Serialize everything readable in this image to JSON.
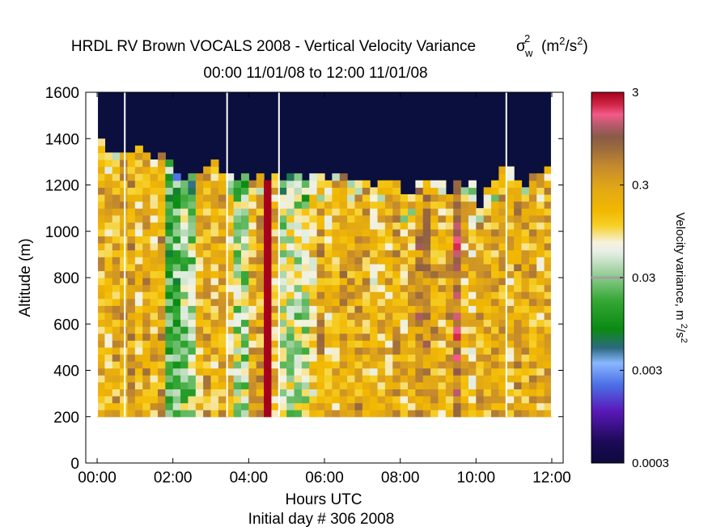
{
  "chart_data": {
    "type": "heatmap",
    "title": {
      "main": "HRDL RV Brown VOCALS 2008 - Vertical Velocity Variance",
      "sigma": "σ",
      "sigma_sub": "w",
      "sigma_sup": "2",
      "units_open": "(m",
      "units_sup1": "2",
      "units_mid": "/s",
      "units_sup2": "2",
      "units_close": ")",
      "subtitle": "00:00 11/01/08 to 12:00 11/01/08"
    },
    "xlabel": "Hours UTC",
    "xlabel2": "Initial day # 306  2008",
    "ylabel": "Altitude (m)",
    "xlim": [
      0,
      12.3
    ],
    "ylim": [
      0,
      1600
    ],
    "xticks": [
      {
        "value": 0,
        "label": "00:00"
      },
      {
        "value": 2,
        "label": "02:00"
      },
      {
        "value": 4,
        "label": "04:00"
      },
      {
        "value": 6,
        "label": "06:00"
      },
      {
        "value": 8,
        "label": "08:00"
      },
      {
        "value": 10,
        "label": "10:00"
      },
      {
        "value": 12,
        "label": "12:00"
      }
    ],
    "yticks": [
      0,
      200,
      400,
      600,
      800,
      1000,
      1200,
      1400,
      1600
    ],
    "colorbar": {
      "label": "Velocity variance, m ",
      "label_sup1": "2",
      "label_mid": "/s",
      "label_sup2": "2",
      "scale": "log",
      "range": [
        0.0003,
        3
      ],
      "ticks": [
        {
          "value": 3,
          "label": "3"
        },
        {
          "value": 0.3,
          "label": "0.3"
        },
        {
          "value": 0.03,
          "label": "0.03"
        },
        {
          "value": 0.003,
          "label": "0.003"
        },
        {
          "value": 0.0003,
          "label": "0.0003"
        }
      ]
    },
    "time_bin_hours": 0.2,
    "altitude_bin_m": 30,
    "data_bottom_altitude_m": 200,
    "masked_top_altitude_m": 1600,
    "masked_color": "#0a0f3d",
    "columns": [
      {
        "t": 0.0,
        "top": 1400
      },
      {
        "t": 0.2,
        "top": 1340
      },
      {
        "t": 0.4,
        "top": 1340
      },
      {
        "t": 0.6,
        "top": 1340
      },
      {
        "t": 0.8,
        "top": 1340
      },
      {
        "t": 1.0,
        "top": 1360
      },
      {
        "t": 1.2,
        "top": 1340
      },
      {
        "t": 1.4,
        "top": 1310
      },
      {
        "t": 1.6,
        "top": 1330
      },
      {
        "t": 1.8,
        "top": 1300
      },
      {
        "t": 2.0,
        "top": 1250
      },
      {
        "t": 2.2,
        "top": 1220
      },
      {
        "t": 2.4,
        "top": 1250
      },
      {
        "t": 2.6,
        "top": 1250
      },
      {
        "t": 2.8,
        "top": 1280
      },
      {
        "t": 3.0,
        "top": 1310
      },
      {
        "t": 3.2,
        "top": 1250
      },
      {
        "t": 3.4,
        "top": 1250
      },
      {
        "t": 3.6,
        "top": 1200
      },
      {
        "t": 3.8,
        "top": 1250
      },
      {
        "t": 4.0,
        "top": 1220
      },
      {
        "t": 4.2,
        "top": 1250
      },
      {
        "t": 4.4,
        "top": 1220
      },
      {
        "t": 4.6,
        "top": 1250
      },
      {
        "t": 4.8,
        "top": 1220
      },
      {
        "t": 5.0,
        "top": 1250
      },
      {
        "t": 5.2,
        "top": 1250
      },
      {
        "t": 5.4,
        "top": 1200
      },
      {
        "t": 5.6,
        "top": 1230
      },
      {
        "t": 5.8,
        "top": 1230
      },
      {
        "t": 6.0,
        "top": 1200
      },
      {
        "t": 6.2,
        "top": 1230
      },
      {
        "t": 6.4,
        "top": 1250
      },
      {
        "t": 6.6,
        "top": 1200
      },
      {
        "t": 6.8,
        "top": 1200
      },
      {
        "t": 7.0,
        "top": 1200
      },
      {
        "t": 7.2,
        "top": 1170
      },
      {
        "t": 7.4,
        "top": 1200
      },
      {
        "t": 7.6,
        "top": 1200
      },
      {
        "t": 7.8,
        "top": 1200
      },
      {
        "t": 8.0,
        "top": 1150
      },
      {
        "t": 8.2,
        "top": 1150
      },
      {
        "t": 8.4,
        "top": 1220
      },
      {
        "t": 8.6,
        "top": 1200
      },
      {
        "t": 8.8,
        "top": 1220
      },
      {
        "t": 9.0,
        "top": 1220
      },
      {
        "t": 9.2,
        "top": 1150
      },
      {
        "t": 9.4,
        "top": 1200
      },
      {
        "t": 9.6,
        "top": 1170
      },
      {
        "t": 9.8,
        "top": 1200
      },
      {
        "t": 10.0,
        "top": 1100
      },
      {
        "t": 10.2,
        "top": 1170
      },
      {
        "t": 10.4,
        "top": 1200
      },
      {
        "t": 10.6,
        "top": 1280
      },
      {
        "t": 10.8,
        "top": 1280
      },
      {
        "t": 11.0,
        "top": 1200
      },
      {
        "t": 11.2,
        "top": 1170
      },
      {
        "t": 11.4,
        "top": 1230
      },
      {
        "t": 11.6,
        "top": 1230
      },
      {
        "t": 11.8,
        "top": 1280
      }
    ],
    "gaps_hours": [
      0.0,
      0.73,
      3.43,
      4.8,
      10.8,
      12.0
    ],
    "max_variance_column": {
      "t": 4.4,
      "value": 3
    },
    "legend_placement": "right colorbar"
  }
}
